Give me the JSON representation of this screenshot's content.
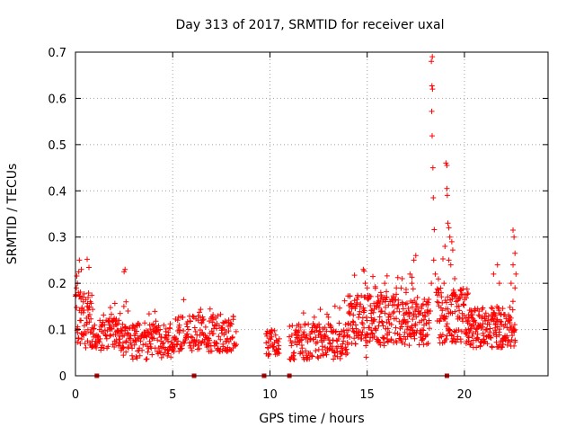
{
  "chart_data": {
    "type": "scatter",
    "title": "Day 313 of 2017, SRMTID for receiver uxal",
    "xlabel": "GPS time / hours",
    "ylabel": "SRMTID / TECUs",
    "xlim": [
      0,
      24.3
    ],
    "ylim": [
      0,
      0.7
    ],
    "xticks": [
      0,
      5,
      10,
      15,
      20
    ],
    "yticks": [
      0,
      0.1,
      0.2,
      0.3,
      0.4,
      0.5,
      0.6,
      0.7
    ],
    "xtick_labels": [
      "0",
      "5",
      "10",
      "15",
      "20"
    ],
    "ytick_labels": [
      "0",
      "0.1",
      "0.2",
      "0.3",
      "0.4",
      "0.5",
      "0.6",
      "0.7"
    ],
    "grid": true,
    "marker": "+",
    "color": "#ff0000",
    "marker_series_color": "#cc0000",
    "baseline_markers_x": [
      1.1,
      6.1,
      9.7,
      11.0,
      19.1
    ],
    "series": [
      {
        "name": "SRMTID",
        "segments": [
          {
            "start": 0.0,
            "end": 0.9,
            "level": 0.12,
            "spread": 0.06,
            "step": 0.02,
            "seed": 3
          },
          {
            "start": 0.9,
            "end": 2.4,
            "level": 0.09,
            "spread": 0.035,
            "step": 0.025,
            "seed": 7
          },
          {
            "start": 2.4,
            "end": 5.0,
            "level": 0.075,
            "spread": 0.04,
            "step": 0.025,
            "seed": 11
          },
          {
            "start": 5.0,
            "end": 8.3,
            "level": 0.09,
            "spread": 0.04,
            "step": 0.025,
            "seed": 17
          },
          {
            "start": 9.8,
            "end": 10.5,
            "level": 0.07,
            "spread": 0.03,
            "step": 0.025,
            "seed": 23
          },
          {
            "start": 11.0,
            "end": 14.0,
            "level": 0.075,
            "spread": 0.04,
            "step": 0.025,
            "seed": 29
          },
          {
            "start": 14.0,
            "end": 18.2,
            "level": 0.12,
            "spread": 0.055,
            "step": 0.02,
            "seed": 31
          },
          {
            "start": 18.6,
            "end": 20.2,
            "level": 0.13,
            "spread": 0.06,
            "step": 0.02,
            "seed": 37
          },
          {
            "start": 20.2,
            "end": 22.6,
            "level": 0.105,
            "spread": 0.045,
            "step": 0.02,
            "seed": 41
          }
        ],
        "points": [
          {
            "x": 0.05,
            "y": 0.19
          },
          {
            "x": 0.1,
            "y": 0.2
          },
          {
            "x": 0.2,
            "y": 0.25
          },
          {
            "x": 0.3,
            "y": 0.23
          },
          {
            "x": 0.15,
            "y": 0.18
          },
          {
            "x": 0.4,
            "y": 0.16
          },
          {
            "x": 0.6,
            "y": 0.15
          },
          {
            "x": 0.25,
            "y": 0.07
          },
          {
            "x": 2.5,
            "y": 0.225
          },
          {
            "x": 2.55,
            "y": 0.23
          },
          {
            "x": 2.6,
            "y": 0.16
          },
          {
            "x": 2.7,
            "y": 0.14
          },
          {
            "x": 14.8,
            "y": 0.23
          },
          {
            "x": 14.9,
            "y": 0.2
          },
          {
            "x": 15.0,
            "y": 0.19
          },
          {
            "x": 14.95,
            "y": 0.04
          },
          {
            "x": 17.2,
            "y": 0.22
          },
          {
            "x": 17.4,
            "y": 0.25
          },
          {
            "x": 17.5,
            "y": 0.26
          },
          {
            "x": 17.3,
            "y": 0.2
          },
          {
            "x": 18.3,
            "y": 0.68
          },
          {
            "x": 18.35,
            "y": 0.69
          },
          {
            "x": 18.33,
            "y": 0.627
          },
          {
            "x": 18.36,
            "y": 0.62
          },
          {
            "x": 18.32,
            "y": 0.572
          },
          {
            "x": 18.34,
            "y": 0.519
          },
          {
            "x": 18.38,
            "y": 0.45
          },
          {
            "x": 18.4,
            "y": 0.385
          },
          {
            "x": 18.45,
            "y": 0.316
          },
          {
            "x": 18.42,
            "y": 0.25
          },
          {
            "x": 18.5,
            "y": 0.22
          },
          {
            "x": 18.3,
            "y": 0.2
          },
          {
            "x": 18.55,
            "y": 0.18
          },
          {
            "x": 18.25,
            "y": 0.14
          },
          {
            "x": 18.6,
            "y": 0.16
          },
          {
            "x": 19.05,
            "y": 0.46
          },
          {
            "x": 19.1,
            "y": 0.455
          },
          {
            "x": 19.1,
            "y": 0.405
          },
          {
            "x": 19.12,
            "y": 0.39
          },
          {
            "x": 19.15,
            "y": 0.33
          },
          {
            "x": 19.2,
            "y": 0.32
          },
          {
            "x": 19.25,
            "y": 0.3
          },
          {
            "x": 19.35,
            "y": 0.29
          },
          {
            "x": 19.4,
            "y": 0.272
          },
          {
            "x": 19.2,
            "y": 0.25
          },
          {
            "x": 19.3,
            "y": 0.24
          },
          {
            "x": 19.5,
            "y": 0.21
          },
          {
            "x": 19.0,
            "y": 0.28
          },
          {
            "x": 18.95,
            "y": 0.2
          },
          {
            "x": 22.5,
            "y": 0.315
          },
          {
            "x": 22.55,
            "y": 0.3
          },
          {
            "x": 22.6,
            "y": 0.265
          },
          {
            "x": 22.5,
            "y": 0.24
          },
          {
            "x": 22.65,
            "y": 0.22
          },
          {
            "x": 22.4,
            "y": 0.2
          },
          {
            "x": 22.6,
            "y": 0.19
          },
          {
            "x": 21.5,
            "y": 0.22
          },
          {
            "x": 21.7,
            "y": 0.24
          },
          {
            "x": 21.8,
            "y": 0.2
          },
          {
            "x": 16.5,
            "y": 0.19
          },
          {
            "x": 16.8,
            "y": 0.21
          },
          {
            "x": 17.0,
            "y": 0.18
          },
          {
            "x": 15.7,
            "y": 0.18
          },
          {
            "x": 15.9,
            "y": 0.2
          },
          {
            "x": 16.0,
            "y": 0.17
          }
        ]
      }
    ]
  }
}
